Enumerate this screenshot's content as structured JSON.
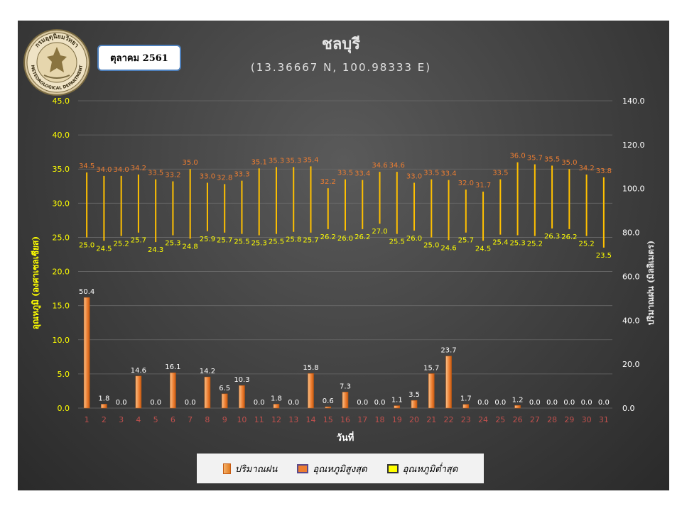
{
  "header": {
    "title": "ชลบุรี",
    "subtitle": "(13.36667 N, 100.98333 E)",
    "period": "ตุลาคม 2561"
  },
  "logo": {
    "top_text": "กรมอุตุนิยมวิทยา",
    "bottom_text": "METEOROLOGICAL DEPARTMENT"
  },
  "legend": {
    "rain_label": "ปริมาณฝน",
    "max_label": "อุณหภูมิสูงสุด",
    "min_label": "อุณหภูมิต่ำสุด"
  },
  "colors": {
    "rain_bar": "#ed7d31",
    "max_label": "#ed7d31",
    "min_label": "#ffff00",
    "temp_line": "#ffc000",
    "left_axis": "#ffff00",
    "x_ticks": "#c0504d",
    "right_axis": "#ffffff"
  },
  "chart_data": {
    "type": "bar",
    "title": "ชลบุรี",
    "subtitle": "(13.36667 N, 100.98333 E)",
    "xlabel": "วันที่",
    "ylabel": "อุณหภูมิ (องศาเซลเซียส)",
    "y2label": "ปริมาณฝน (มิลลิเมตร)",
    "x": [
      "1",
      "2",
      "3",
      "4",
      "5",
      "6",
      "7",
      "8",
      "9",
      "10",
      "11",
      "12",
      "13",
      "14",
      "15",
      "16",
      "17",
      "18",
      "19",
      "20",
      "21",
      "22",
      "23",
      "24",
      "25",
      "26",
      "27",
      "28",
      "29",
      "30",
      "31"
    ],
    "ylim": [
      0,
      45
    ],
    "y_ticks": [
      "0.0",
      "5.0",
      "10.0",
      "15.0",
      "20.0",
      "25.0",
      "30.0",
      "35.0",
      "40.0",
      "45.0"
    ],
    "y2lim": [
      0,
      140
    ],
    "y2_ticks": [
      "0.0",
      "20.0",
      "40.0",
      "60.0",
      "80.0",
      "100.0",
      "120.0",
      "140.0"
    ],
    "series": [
      {
        "name": "ปริมาณฝน",
        "axis": "right",
        "values": [
          50.4,
          1.8,
          0.0,
          14.6,
          0.0,
          16.1,
          0.0,
          14.2,
          6.5,
          10.3,
          0.0,
          1.8,
          0.0,
          15.8,
          0.6,
          7.3,
          0.0,
          0.0,
          1.1,
          3.5,
          15.7,
          23.7,
          1.7,
          0.0,
          0.0,
          1.2,
          0.0,
          0.0,
          0.0,
          0.0,
          0.0
        ]
      },
      {
        "name": "อุณหภูมิสูงสุด",
        "axis": "left",
        "values": [
          34.5,
          34.0,
          34.0,
          34.2,
          33.5,
          33.2,
          35.0,
          33.0,
          32.8,
          33.3,
          35.1,
          35.3,
          35.3,
          35.4,
          32.2,
          33.5,
          33.4,
          34.6,
          34.6,
          33.0,
          33.5,
          33.4,
          32.0,
          31.7,
          33.5,
          36.0,
          35.7,
          35.5,
          35.0,
          34.2,
          33.8
        ]
      },
      {
        "name": "อุณหภูมิต่ำสุด",
        "axis": "left",
        "values": [
          25.0,
          24.5,
          25.2,
          25.7,
          24.3,
          25.3,
          24.8,
          25.9,
          25.7,
          25.5,
          25.3,
          25.5,
          25.8,
          25.7,
          26.2,
          26.0,
          26.2,
          27.0,
          25.5,
          26.0,
          25.0,
          24.6,
          25.7,
          24.5,
          25.4,
          25.3,
          25.2,
          26.3,
          26.2,
          25.2,
          23.5
        ]
      }
    ],
    "legend_position": "bottom",
    "grid": true
  }
}
